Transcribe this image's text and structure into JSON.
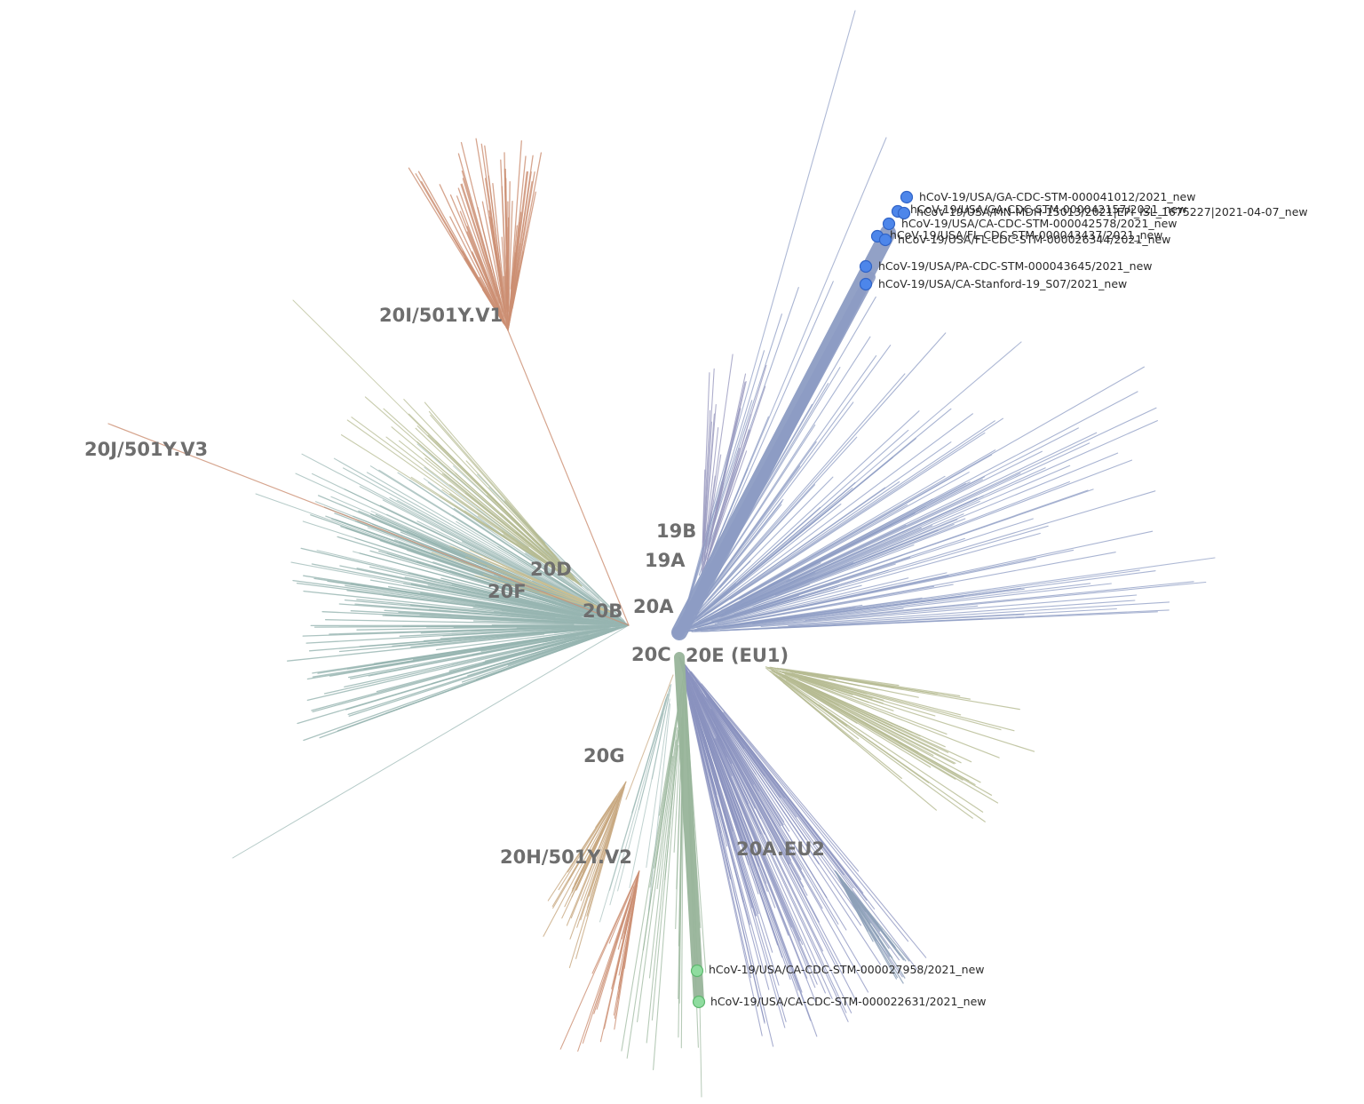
{
  "colors": {
    "blue": "#8d9cc4",
    "blue_dark": "#8a92bf",
    "green": "#98b59a",
    "teal": "#97b5b1",
    "olive": "#b6bb92",
    "salmon": "#cc8f73",
    "tan": "#c8a880",
    "purple": "#9a9ac0",
    "dot_blue": "#4d86ea",
    "dot_blue_stroke": "#3164c7",
    "dot_green": "#8fdc9f",
    "dot_green_stroke": "#5fb76f"
  },
  "clades": [
    {
      "id": "20I",
      "label": "20I/501Y.V1"
    },
    {
      "id": "20J",
      "label": "20J/501Y.V3"
    },
    {
      "id": "20D",
      "label": "20D"
    },
    {
      "id": "20F",
      "label": "20F"
    },
    {
      "id": "20B",
      "label": "20B"
    },
    {
      "id": "20A",
      "label": "20A"
    },
    {
      "id": "19B",
      "label": "19B"
    },
    {
      "id": "19A",
      "label": "19A"
    },
    {
      "id": "20C",
      "label": "20C"
    },
    {
      "id": "20E",
      "label": "20E (EU1)"
    },
    {
      "id": "20G",
      "label": "20G"
    },
    {
      "id": "20H",
      "label": "20H/501Y.V2"
    },
    {
      "id": "20AEU2",
      "label": "20A.EU2"
    }
  ],
  "tips": [
    {
      "label": "hCoV-19/USA/GA-CDC-STM-000041012/2021_new",
      "group": "blue"
    },
    {
      "label": "hCoV-19/USA/GA-CDC-STM-000042157/2021_new",
      "group": "blue"
    },
    {
      "label": "hCoV-19/USA/MN-MDH-15013/2021|EPI_ISL_1675227|2021-04-07_new",
      "group": "blue"
    },
    {
      "label": "hCoV-19/USA/CA-CDC-STM-000042578/2021_new",
      "group": "blue"
    },
    {
      "label": "hCoV-19/USA/FL-CDC-STM-000043437/2021_new",
      "group": "blue"
    },
    {
      "label": "hCoV-19/USA/FL-CDC-STM-000026344/2021_new",
      "group": "blue"
    },
    {
      "label": "hCoV-19/USA/PA-CDC-STM-000043645/2021_new",
      "group": "blue"
    },
    {
      "label": "hCoV-19/USA/CA-Stanford-19_S07/2021_new",
      "group": "blue"
    },
    {
      "label": "hCoV-19/USA/CA-CDC-STM-000027958/2021_new",
      "group": "green"
    },
    {
      "label": "hCoV-19/USA/CA-CDC-STM-000022631/2021_new",
      "group": "green"
    }
  ]
}
